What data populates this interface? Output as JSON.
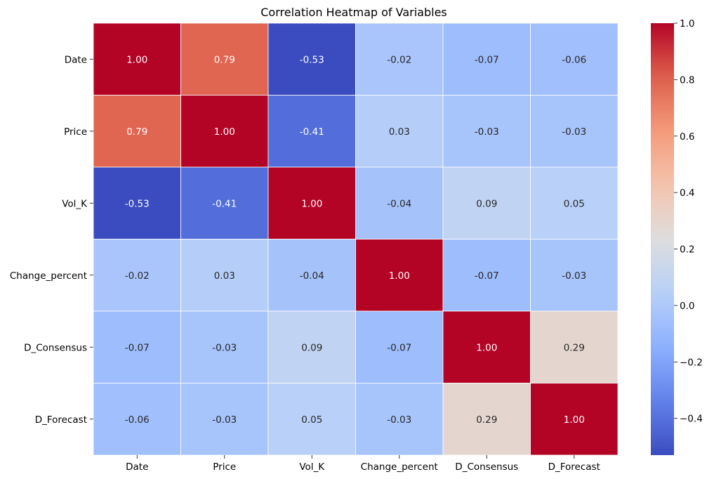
{
  "chart_data": {
    "type": "heatmap",
    "title": "Correlation Heatmap of Variables",
    "rows": [
      "Date",
      "Price",
      "Vol_K",
      "Change_percent",
      "D_Consensus",
      "D_Forecast"
    ],
    "columns": [
      "Date",
      "Price",
      "Vol_K",
      "Change_percent",
      "D_Consensus",
      "D_Forecast"
    ],
    "values": [
      [
        1.0,
        0.79,
        -0.53,
        -0.02,
        -0.07,
        -0.06
      ],
      [
        0.79,
        1.0,
        -0.41,
        0.03,
        -0.03,
        -0.03
      ],
      [
        -0.53,
        -0.41,
        1.0,
        -0.04,
        0.09,
        0.05
      ],
      [
        -0.02,
        0.03,
        -0.04,
        1.0,
        -0.07,
        -0.03
      ],
      [
        -0.07,
        -0.03,
        0.09,
        -0.07,
        1.0,
        0.29
      ],
      [
        -0.06,
        -0.03,
        0.05,
        -0.03,
        0.29,
        1.0
      ]
    ],
    "annotations_format": "0.00",
    "colormap": "coolwarm",
    "vmin": -0.53,
    "vmax": 1.0,
    "colorbar": {
      "ticks": [
        -0.4,
        -0.2,
        0.0,
        0.2,
        0.4,
        0.6,
        0.8,
        1.0
      ],
      "tick_labels": [
        "−0.4",
        "−0.2",
        "0.0",
        "0.2",
        "0.4",
        "0.6",
        "0.8",
        "1.0"
      ]
    },
    "grid_lines": true,
    "grid_color": "#ffffff"
  }
}
